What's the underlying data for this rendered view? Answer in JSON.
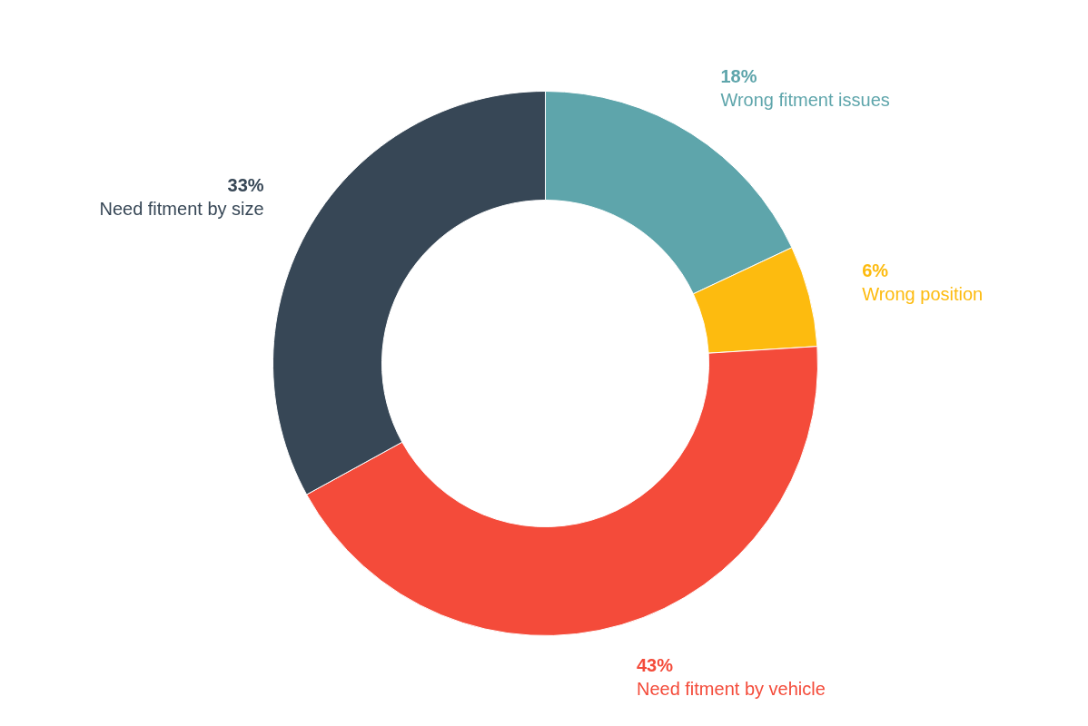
{
  "chart_data": {
    "type": "donut",
    "categories": [
      "Wrong fitment issues",
      "Wrong position",
      "Need fitment by vehicle",
      "Need fitment by size"
    ],
    "values": [
      18,
      6,
      43,
      33
    ],
    "colors": [
      "#5ea5ab",
      "#fdbb0f",
      "#f44b3a",
      "#374756"
    ],
    "value_labels": [
      "18%",
      "6%",
      "43%",
      "33%"
    ]
  }
}
